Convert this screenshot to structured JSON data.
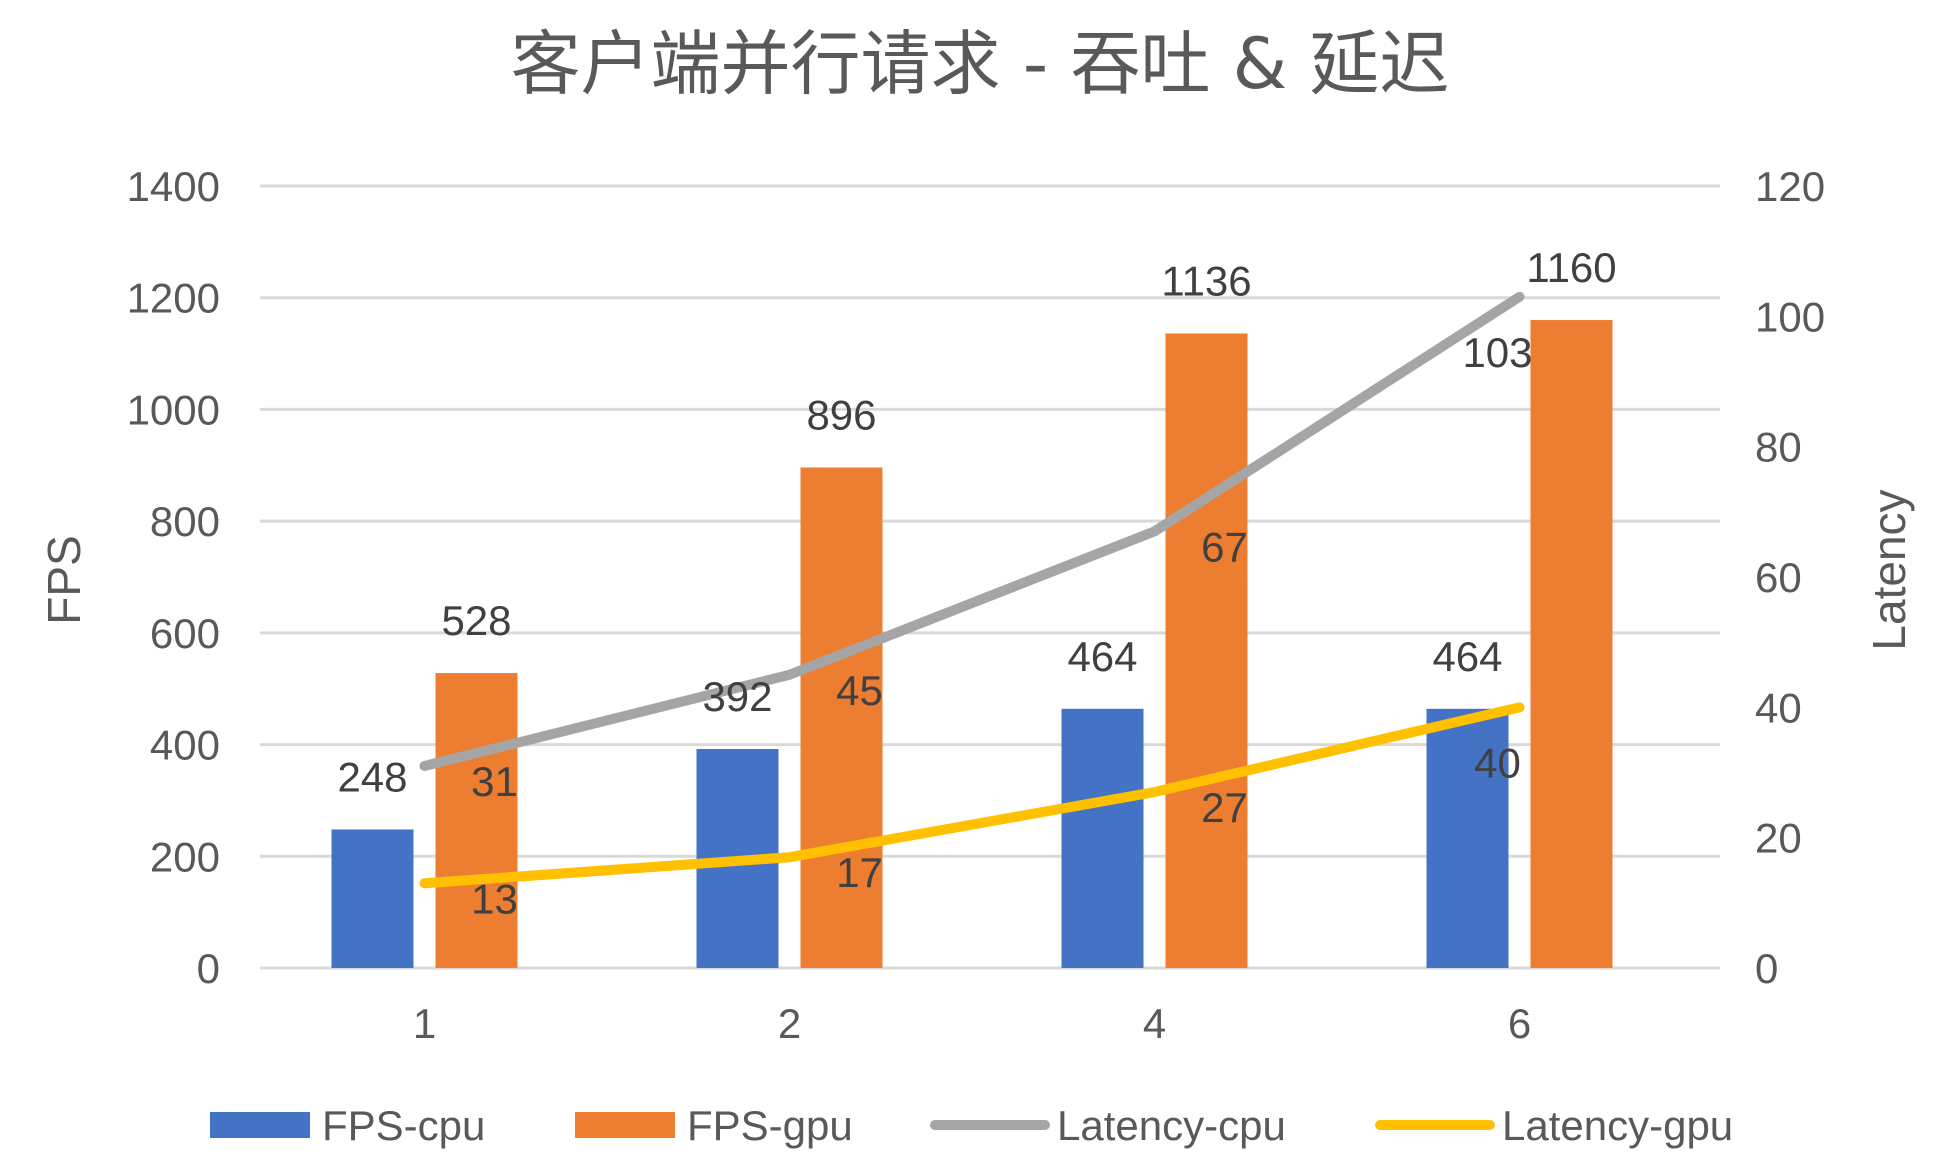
{
  "chart_data": {
    "type": "bar",
    "title": "客户端并行请求 - 吞吐 & 延迟",
    "categories": [
      "1",
      "2",
      "4",
      "6"
    ],
    "y_left": {
      "label": "FPS",
      "range": [
        0,
        1400
      ],
      "ticks": [
        0,
        200,
        400,
        600,
        800,
        1000,
        1200,
        1400
      ]
    },
    "y_right": {
      "label": "Latency",
      "range": [
        0,
        120
      ],
      "ticks": [
        0,
        20,
        40,
        60,
        80,
        100,
        120
      ]
    },
    "grid": true,
    "legend": "bottom",
    "series": [
      {
        "name": "FPS-cpu",
        "kind": "bar",
        "axis": "left",
        "color": "#4472c4",
        "values": [
          248,
          392,
          464,
          464
        ]
      },
      {
        "name": "FPS-gpu",
        "kind": "bar",
        "axis": "left",
        "color": "#ed7d31",
        "values": [
          528,
          896,
          1136,
          1160
        ]
      },
      {
        "name": "Latency-cpu",
        "kind": "line",
        "axis": "right",
        "color": "#a5a5a5",
        "values": [
          31,
          45,
          67,
          103
        ]
      },
      {
        "name": "Latency-gpu",
        "kind": "line",
        "axis": "right",
        "color": "#ffc000",
        "values": [
          13,
          17,
          27,
          40
        ]
      }
    ]
  }
}
